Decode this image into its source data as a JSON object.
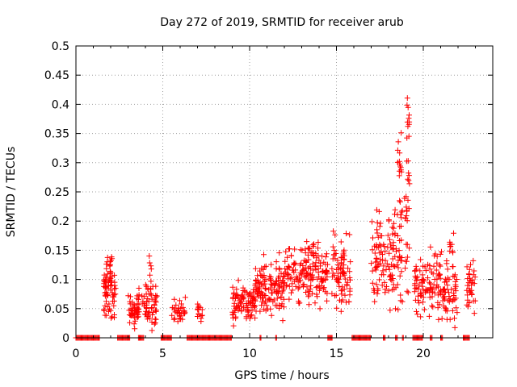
{
  "chart_data": {
    "type": "scatter",
    "title": "Day 272 of 2019, SRMTID for receiver arub",
    "xlabel": "GPS time / hours",
    "ylabel": "SRMTID / TECUs",
    "xlim": [
      0,
      24
    ],
    "ylim": [
      0,
      0.5
    ],
    "x_ticks": [
      0,
      5,
      10,
      15,
      20
    ],
    "x_tick_labels": [
      "0",
      "5",
      "10",
      "15",
      "20"
    ],
    "y_ticks": [
      0,
      0.05,
      0.1,
      0.15,
      0.2,
      0.25,
      0.3,
      0.35,
      0.4,
      0.45,
      0.5
    ],
    "y_tick_labels": [
      "0",
      "0.05",
      "0.1",
      "0.15",
      "0.2",
      "0.25",
      "0.3",
      "0.35",
      "0.4",
      "0.45",
      "0.5"
    ],
    "grid": true,
    "marker": "+",
    "color": "#ff0000",
    "series": [
      {
        "name": "SRMTID",
        "clusters": [
          {
            "x_range": [
              1.6,
              2.3
            ],
            "y_mean": 0.082,
            "y_spread": 0.022,
            "count": 70
          },
          {
            "x_range": [
              1.9,
              2.1
            ],
            "y_mean": 0.12,
            "y_spread": 0.012,
            "count": 10
          },
          {
            "x_range": [
              3.0,
              3.6
            ],
            "y_mean": 0.045,
            "y_spread": 0.012,
            "count": 40
          },
          {
            "x_range": [
              3.5,
              4.7
            ],
            "y_mean": 0.058,
            "y_spread": 0.016,
            "count": 70
          },
          {
            "x_range": [
              4.2,
              4.4
            ],
            "y_mean": 0.12,
            "y_spread": 0.012,
            "count": 6
          },
          {
            "x_range": [
              5.5,
              6.3
            ],
            "y_mean": 0.045,
            "y_spread": 0.01,
            "count": 35
          },
          {
            "x_range": [
              7.0,
              7.3
            ],
            "y_mean": 0.045,
            "y_spread": 0.008,
            "count": 15
          },
          {
            "x_range": [
              9.0,
              10.3
            ],
            "y_mean": 0.06,
            "y_spread": 0.016,
            "count": 90
          },
          {
            "x_range": [
              10.3,
              12.0
            ],
            "y_mean": 0.085,
            "y_spread": 0.025,
            "count": 130
          },
          {
            "x_range": [
              12.0,
              14.5
            ],
            "y_mean": 0.105,
            "y_spread": 0.022,
            "count": 160
          },
          {
            "x_range": [
              13.0,
              14.0
            ],
            "y_mean": 0.15,
            "y_spread": 0.012,
            "count": 15
          },
          {
            "x_range": [
              14.7,
              15.8
            ],
            "y_mean": 0.11,
            "y_spread": 0.03,
            "count": 80
          },
          {
            "x_range": [
              17.0,
              18.8
            ],
            "y_mean": 0.125,
            "y_spread": 0.035,
            "count": 110
          },
          {
            "x_range": [
              17.3,
              17.5
            ],
            "y_mean": 0.2,
            "y_spread": 0.015,
            "count": 6
          },
          {
            "x_range": [
              18.2,
              18.8
            ],
            "y_mean": 0.18,
            "y_spread": 0.025,
            "count": 20
          },
          {
            "x_range": [
              18.5,
              18.75
            ],
            "y_mean": 0.3,
            "y_spread": 0.025,
            "count": 14
          },
          {
            "x_range": [
              18.9,
              19.2
            ],
            "y_mean": 0.17,
            "y_spread": 0.05,
            "count": 20
          },
          {
            "x_range": [
              19.05,
              19.2
            ],
            "y_mean": 0.37,
            "y_spread": 0.05,
            "count": 12
          },
          {
            "x_range": [
              19.1,
              19.25
            ],
            "y_mean": 0.28,
            "y_spread": 0.03,
            "count": 6
          },
          {
            "x_range": [
              19.5,
              21.0
            ],
            "y_mean": 0.095,
            "y_spread": 0.025,
            "count": 100
          },
          {
            "x_range": [
              21.0,
              22.0
            ],
            "y_mean": 0.08,
            "y_spread": 0.025,
            "count": 60
          },
          {
            "x_range": [
              21.5,
              21.8
            ],
            "y_mean": 0.16,
            "y_spread": 0.015,
            "count": 10
          },
          {
            "x_range": [
              22.5,
              23.0
            ],
            "y_mean": 0.085,
            "y_spread": 0.022,
            "count": 35
          }
        ],
        "zero_value_intervals": [
          [
            0.0,
            1.4
          ],
          [
            2.4,
            3.1
          ],
          [
            3.6,
            3.9
          ],
          [
            4.9,
            5.5
          ],
          [
            6.4,
            9.0
          ],
          [
            10.6,
            10.7
          ],
          [
            11.5,
            11.6
          ],
          [
            14.5,
            14.8
          ],
          [
            15.9,
            17.0
          ],
          [
            17.7,
            17.8
          ],
          [
            18.4,
            18.5
          ],
          [
            18.8,
            18.9
          ],
          [
            19.4,
            20.0
          ],
          [
            20.4,
            20.5
          ],
          [
            21.0,
            21.1
          ],
          [
            22.3,
            22.7
          ]
        ]
      }
    ]
  }
}
